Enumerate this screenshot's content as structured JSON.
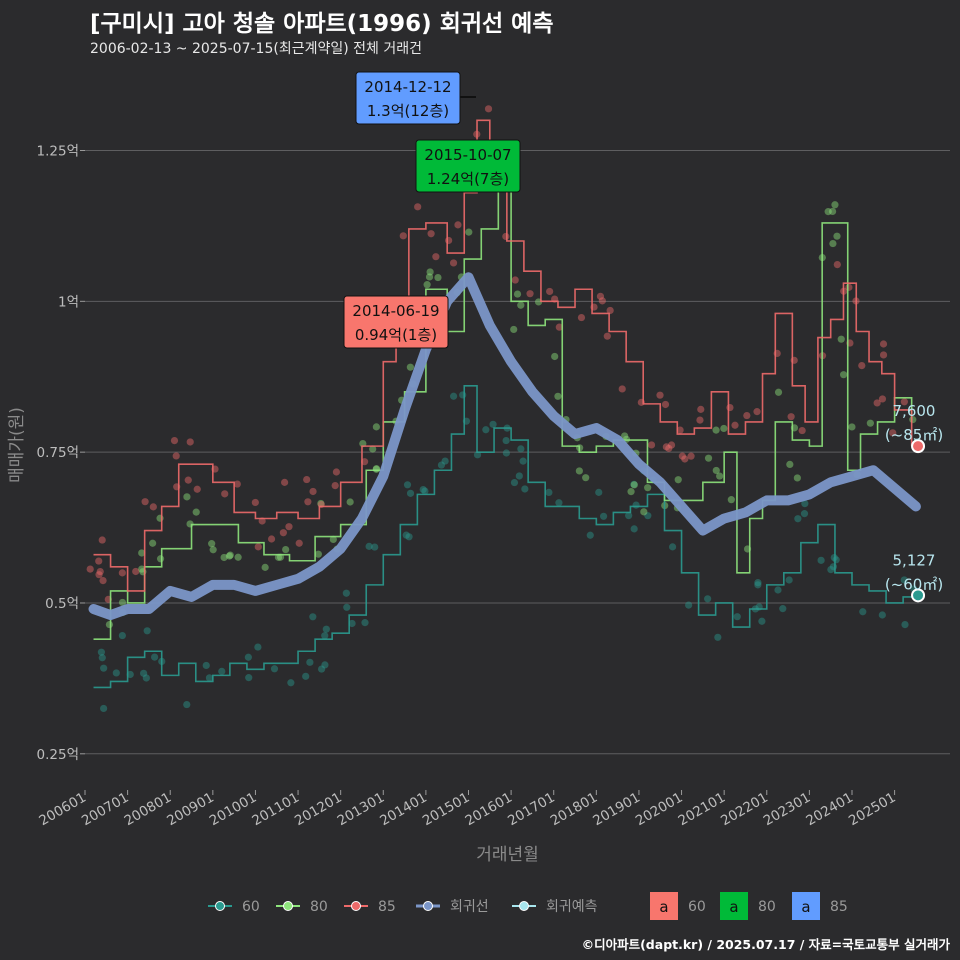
{
  "header": {
    "title": "[구미시] 고아 청솔 아파트(1996) 회귀선 예측",
    "subtitle": "2006-02-13 ~ 2025-07-15(최근계약일) 전체 거래건",
    "credit": "©디아파트(dapt.kr) / 2025.07.17 / 자료=국토교통부 실거래가"
  },
  "colors": {
    "bg": "#2b2b2d",
    "grid": "#5e5e60",
    "s60": "#2a9a8f",
    "s80": "#8ee47c",
    "s85": "#ee6a6a",
    "reg": "#7b96c8",
    "pred": "#a8e6ee",
    "box60": "#f8766d",
    "box80": "#00ba38",
    "box85": "#619cff"
  },
  "chart_data": {
    "type": "line",
    "title": "[구미시] 고아 청솔 아파트(1996) 회귀선 예측",
    "xlabel": "거래년월",
    "ylabel": "매매가(원)",
    "xlim": [
      2006.0,
      2026.3
    ],
    "ylim": [
      0.19,
      1.4
    ],
    "y_ticks": [
      {
        "value": 0.25,
        "label": "0.25억"
      },
      {
        "value": 0.5,
        "label": "0.5억"
      },
      {
        "value": 0.75,
        "label": "0.75억"
      },
      {
        "value": 1.0,
        "label": "1억"
      },
      {
        "value": 1.25,
        "label": "1.25억"
      }
    ],
    "x_ticks": [
      "200601",
      "200701",
      "200801",
      "200901",
      "201001",
      "201101",
      "201201",
      "201301",
      "201401",
      "201501",
      "201601",
      "201701",
      "201801",
      "201901",
      "202001",
      "202101",
      "202201",
      "202301",
      "202401",
      "202501"
    ],
    "series": [
      {
        "name": "60",
        "color": "#2a9a8f",
        "x": [
          2006.2,
          2006.6,
          2007.0,
          2007.4,
          2007.8,
          2008.2,
          2008.6,
          2009.0,
          2009.4,
          2009.8,
          2010.2,
          2010.6,
          2011.0,
          2011.4,
          2011.8,
          2012.2,
          2012.6,
          2013.0,
          2013.4,
          2013.8,
          2014.2,
          2014.6,
          2014.9,
          2015.2,
          2015.6,
          2016.0,
          2016.4,
          2016.8,
          2017.2,
          2017.6,
          2018.0,
          2018.4,
          2018.8,
          2019.2,
          2019.6,
          2020.0,
          2020.4,
          2020.8,
          2021.2,
          2021.6,
          2022.0,
          2022.4,
          2022.8,
          2023.2,
          2023.6,
          2024.0,
          2024.4,
          2024.8,
          2025.2,
          2025.5
        ],
        "values": [
          0.36,
          0.37,
          0.41,
          0.42,
          0.38,
          0.4,
          0.37,
          0.38,
          0.4,
          0.39,
          0.4,
          0.4,
          0.42,
          0.44,
          0.45,
          0.48,
          0.53,
          0.58,
          0.63,
          0.68,
          0.72,
          0.78,
          0.86,
          0.75,
          0.79,
          0.77,
          0.7,
          0.66,
          0.66,
          0.64,
          0.63,
          0.65,
          0.66,
          0.68,
          0.62,
          0.55,
          0.48,
          0.5,
          0.46,
          0.49,
          0.53,
          0.55,
          0.6,
          0.63,
          0.55,
          0.53,
          0.52,
          0.5,
          0.51,
          0.51
        ]
      },
      {
        "name": "80",
        "color": "#8ee47c",
        "x": [
          2006.2,
          2006.6,
          2007.0,
          2007.4,
          2007.8,
          2008.5,
          2009.0,
          2009.6,
          2010.2,
          2010.8,
          2011.4,
          2012.0,
          2012.6,
          2013.0,
          2013.5,
          2014.0,
          2014.5,
          2014.9,
          2015.3,
          2015.7,
          2016.0,
          2016.4,
          2016.8,
          2017.2,
          2017.6,
          2018.0,
          2018.4,
          2019.2,
          2019.6,
          2020.0,
          2020.5,
          2021.0,
          2021.3,
          2021.6,
          2021.9,
          2022.2,
          2022.6,
          2023.0,
          2023.3,
          2023.6,
          2023.9,
          2024.2,
          2024.6,
          2025.0,
          2025.4
        ],
        "values": [
          0.44,
          0.52,
          0.5,
          0.56,
          0.59,
          0.63,
          0.63,
          0.6,
          0.58,
          0.57,
          0.61,
          0.63,
          0.72,
          0.8,
          0.85,
          1.02,
          0.95,
          1.07,
          1.12,
          1.24,
          1.0,
          0.96,
          0.97,
          0.76,
          0.75,
          0.76,
          0.77,
          0.7,
          0.67,
          0.67,
          0.7,
          0.75,
          0.55,
          0.64,
          0.67,
          0.8,
          0.77,
          0.76,
          1.13,
          1.13,
          0.72,
          0.78,
          0.8,
          0.84,
          0.8
        ]
      },
      {
        "name": "85",
        "color": "#ee6a6a",
        "x": [
          2006.2,
          2006.6,
          2007.0,
          2007.4,
          2007.8,
          2008.2,
          2008.6,
          2009.0,
          2009.5,
          2010.0,
          2010.5,
          2011.0,
          2011.5,
          2012.0,
          2012.5,
          2013.0,
          2013.3,
          2013.6,
          2014.0,
          2014.5,
          2014.9,
          2015.2,
          2015.5,
          2015.9,
          2016.3,
          2016.7,
          2017.1,
          2017.5,
          2017.9,
          2018.3,
          2018.7,
          2019.1,
          2019.5,
          2019.9,
          2020.3,
          2020.7,
          2021.1,
          2021.5,
          2021.9,
          2022.2,
          2022.6,
          2022.9,
          2023.2,
          2023.5,
          2023.8,
          2024.1,
          2024.4,
          2024.7,
          2025.0,
          2025.4
        ],
        "values": [
          0.58,
          0.56,
          0.52,
          0.62,
          0.66,
          0.73,
          0.73,
          0.7,
          0.65,
          0.64,
          0.65,
          0.64,
          0.66,
          0.7,
          0.76,
          0.9,
          1.0,
          1.12,
          1.13,
          1.08,
          1.18,
          1.3,
          1.26,
          1.1,
          1.05,
          1.0,
          0.99,
          1.02,
          0.98,
          0.95,
          0.9,
          0.83,
          0.8,
          0.78,
          0.79,
          0.85,
          0.78,
          0.8,
          0.88,
          0.98,
          0.86,
          0.8,
          0.94,
          0.97,
          1.03,
          0.95,
          0.9,
          0.88,
          0.82,
          0.76
        ]
      },
      {
        "name": "회귀선",
        "color": "#7b96c8",
        "x": [
          2006.2,
          2006.6,
          2007.0,
          2007.5,
          2008.0,
          2008.5,
          2009.0,
          2009.5,
          2010.0,
          2010.5,
          2011.0,
          2011.5,
          2012.0,
          2012.5,
          2013.0,
          2013.5,
          2014.0,
          2014.5,
          2015.0,
          2015.5,
          2016.0,
          2016.5,
          2017.0,
          2017.5,
          2018.0,
          2018.5,
          2019.0,
          2019.5,
          2020.0,
          2020.5,
          2021.0,
          2021.5,
          2022.0,
          2022.5,
          2023.0,
          2023.5,
          2024.0,
          2024.5,
          2025.0,
          2025.5
        ],
        "values": [
          0.49,
          0.48,
          0.49,
          0.49,
          0.52,
          0.51,
          0.53,
          0.53,
          0.52,
          0.53,
          0.54,
          0.56,
          0.59,
          0.64,
          0.71,
          0.82,
          0.92,
          1.0,
          1.04,
          0.96,
          0.9,
          0.85,
          0.81,
          0.78,
          0.79,
          0.77,
          0.73,
          0.7,
          0.66,
          0.62,
          0.64,
          0.65,
          0.67,
          0.67,
          0.68,
          0.7,
          0.71,
          0.72,
          0.69,
          0.66
        ]
      }
    ],
    "regression_prediction": [
      {
        "area": "85",
        "value": 0.76,
        "label": "7,600",
        "sublabel": "(~85㎡)"
      },
      {
        "area": "60",
        "value": 0.5127,
        "label": "5,127",
        "sublabel": "(~60㎡)"
      }
    ],
    "annotations": [
      {
        "date": "2014-12-12",
        "price": "1.3억(12층)",
        "area": "85",
        "value": 1.3
      },
      {
        "date": "2015-10-07",
        "price": "1.24억(7층)",
        "area": "80",
        "value": 1.24
      },
      {
        "date": "2014-06-19",
        "price": "0.94억(1층)",
        "area": "60",
        "value": 0.94
      }
    ]
  },
  "legend": {
    "items": [
      "60",
      "80",
      "85",
      "회귀선",
      "회귀예측"
    ],
    "box_items": [
      "60",
      "80",
      "85"
    ],
    "box_glyph": "a"
  }
}
